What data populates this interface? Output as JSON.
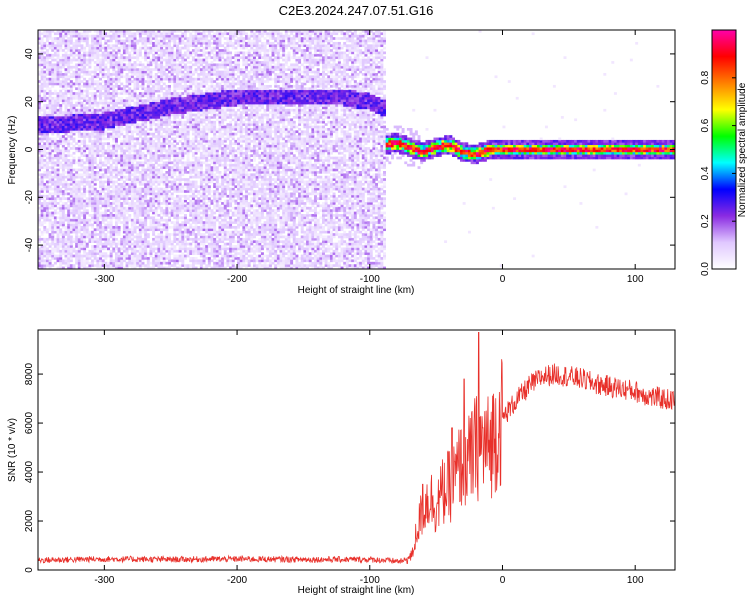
{
  "title": "C2E3.2024.247.07.51.G16",
  "chart_data": [
    {
      "type": "heatmap",
      "xlabel": "Height of straight line (km)",
      "ylabel": "Frequency (Hz)",
      "xlim": [
        -350,
        130
      ],
      "ylim": [
        -50,
        50
      ],
      "x_ticks": [
        -300,
        -200,
        -100,
        0,
        100
      ],
      "y_ticks": [
        -40,
        -20,
        0,
        20,
        40
      ],
      "colorbar": {
        "label": "Normalized spectral amplitude",
        "range": [
          0,
          1
        ],
        "ticks": [
          0.0,
          0.2,
          0.4,
          0.6,
          0.8
        ],
        "colormap": [
          "#ffffff",
          "#e0c8ff",
          "#8a2be2",
          "#0000ff",
          "#00ffff",
          "#00ff00",
          "#ffff00",
          "#ff8000",
          "#ff0000",
          "#ff00aa"
        ]
      },
      "features": [
        {
          "x_range": [
            -350,
            -88
          ],
          "description_values": {
            "noise_level": 0.1
          }
        },
        {
          "ridge": [
            [
              -350,
              10
            ],
            [
              -300,
              12
            ],
            [
              -250,
              18
            ],
            [
              -200,
              22
            ],
            [
              -150,
              22
            ],
            [
              -120,
              22
            ],
            [
              -100,
              20
            ],
            [
              -88,
              17
            ]
          ],
          "amplitude": 0.25
        },
        {
          "ridge": [
            [
              -88,
              2
            ],
            [
              -80,
              3
            ],
            [
              -70,
              1
            ],
            [
              -60,
              -1
            ],
            [
              -50,
              1
            ],
            [
              -40,
              2
            ],
            [
              -30,
              -1
            ],
            [
              -20,
              -2
            ],
            [
              -10,
              0
            ],
            [
              0,
              0
            ],
            [
              50,
              0
            ],
            [
              100,
              0
            ],
            [
              130,
              0
            ]
          ],
          "amplitude": 0.9
        }
      ]
    },
    {
      "type": "line",
      "xlabel": "Height of straight line (km)",
      "ylabel": "SNR (10 * v/v)",
      "xlim": [
        -350,
        130
      ],
      "ylim": [
        0,
        9800
      ],
      "x_ticks": [
        -300,
        -200,
        -100,
        0,
        100
      ],
      "y_ticks": [
        0,
        2000,
        4000,
        6000,
        8000
      ],
      "color": "#e8302a",
      "profile": [
        [
          -350,
          350
        ],
        [
          -300,
          400
        ],
        [
          -250,
          380
        ],
        [
          -200,
          400
        ],
        [
          -150,
          380
        ],
        [
          -100,
          380
        ],
        [
          -75,
          300
        ],
        [
          -68,
          600
        ],
        [
          -65,
          1500
        ],
        [
          -60,
          2500
        ],
        [
          -55,
          3000
        ],
        [
          -50,
          2600
        ],
        [
          -45,
          3200
        ],
        [
          -40,
          3400
        ],
        [
          -35,
          3800
        ],
        [
          -30,
          4500
        ],
        [
          -25,
          4400
        ],
        [
          -20,
          5000
        ],
        [
          -15,
          5100
        ],
        [
          -10,
          5000
        ],
        [
          -5,
          5700
        ],
        [
          0,
          6200
        ],
        [
          10,
          6900
        ],
        [
          20,
          7500
        ],
        [
          30,
          7900
        ],
        [
          40,
          8000
        ],
        [
          50,
          7900
        ],
        [
          60,
          7800
        ],
        [
          70,
          7600
        ],
        [
          80,
          7500
        ],
        [
          90,
          7400
        ],
        [
          100,
          7300
        ],
        [
          110,
          7100
        ],
        [
          120,
          7000
        ],
        [
          130,
          6900
        ]
      ],
      "spikes": [
        [
          -18,
          9700
        ],
        [
          -29,
          7800
        ],
        [
          -38,
          5800
        ],
        [
          -60,
          3500
        ]
      ]
    }
  ]
}
